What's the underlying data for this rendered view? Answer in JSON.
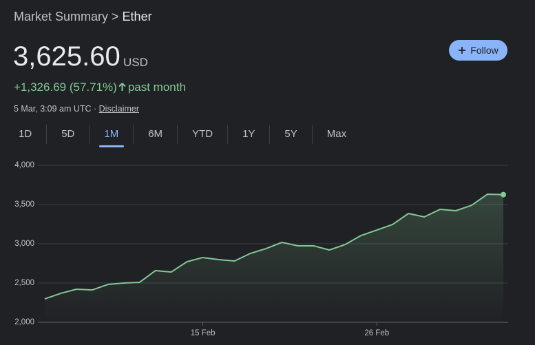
{
  "header": {
    "breadcrumb": "Market Summary",
    "asset": "Ether",
    "price": "3,625.60",
    "currency": "USD",
    "change": "+1,326.69 (57.71%)",
    "period": "past month",
    "timestamp": "5 Mar, 3:09 am UTC",
    "disclaimer": "Disclaimer",
    "follow": "Follow"
  },
  "tabs": [
    "1D",
    "5D",
    "1M",
    "6M",
    "YTD",
    "1Y",
    "5Y",
    "Max"
  ],
  "selected_tab": 2,
  "chart_data": {
    "type": "line",
    "categories": [
      null,
      null,
      null,
      null,
      null,
      null,
      null,
      null,
      null,
      null,
      "15 Feb",
      null,
      null,
      null,
      null,
      null,
      null,
      null,
      null,
      null,
      null,
      "26 Feb",
      null,
      null,
      null,
      null,
      null,
      null,
      null,
      null
    ],
    "series": [
      {
        "name": "Ether",
        "color": "#81c995",
        "values": [
          2298,
          2368,
          2421,
          2412,
          2482,
          2500,
          2509,
          2658,
          2640,
          2772,
          2825,
          2798,
          2781,
          2877,
          2939,
          3018,
          2974,
          2974,
          2921,
          2991,
          3105,
          3175,
          3246,
          3386,
          3342,
          3439,
          3421,
          3491,
          3632,
          3626
        ]
      }
    ],
    "ylim": [
      2000,
      4000
    ],
    "yticks": [
      {
        "value": 2000,
        "label": "2,000"
      },
      {
        "value": 2500,
        "label": "2,500"
      },
      {
        "value": 3000,
        "label": "3,000"
      },
      {
        "value": 3500,
        "label": "3,500"
      },
      {
        "value": 4000,
        "label": "4,000"
      }
    ],
    "grid": true
  }
}
